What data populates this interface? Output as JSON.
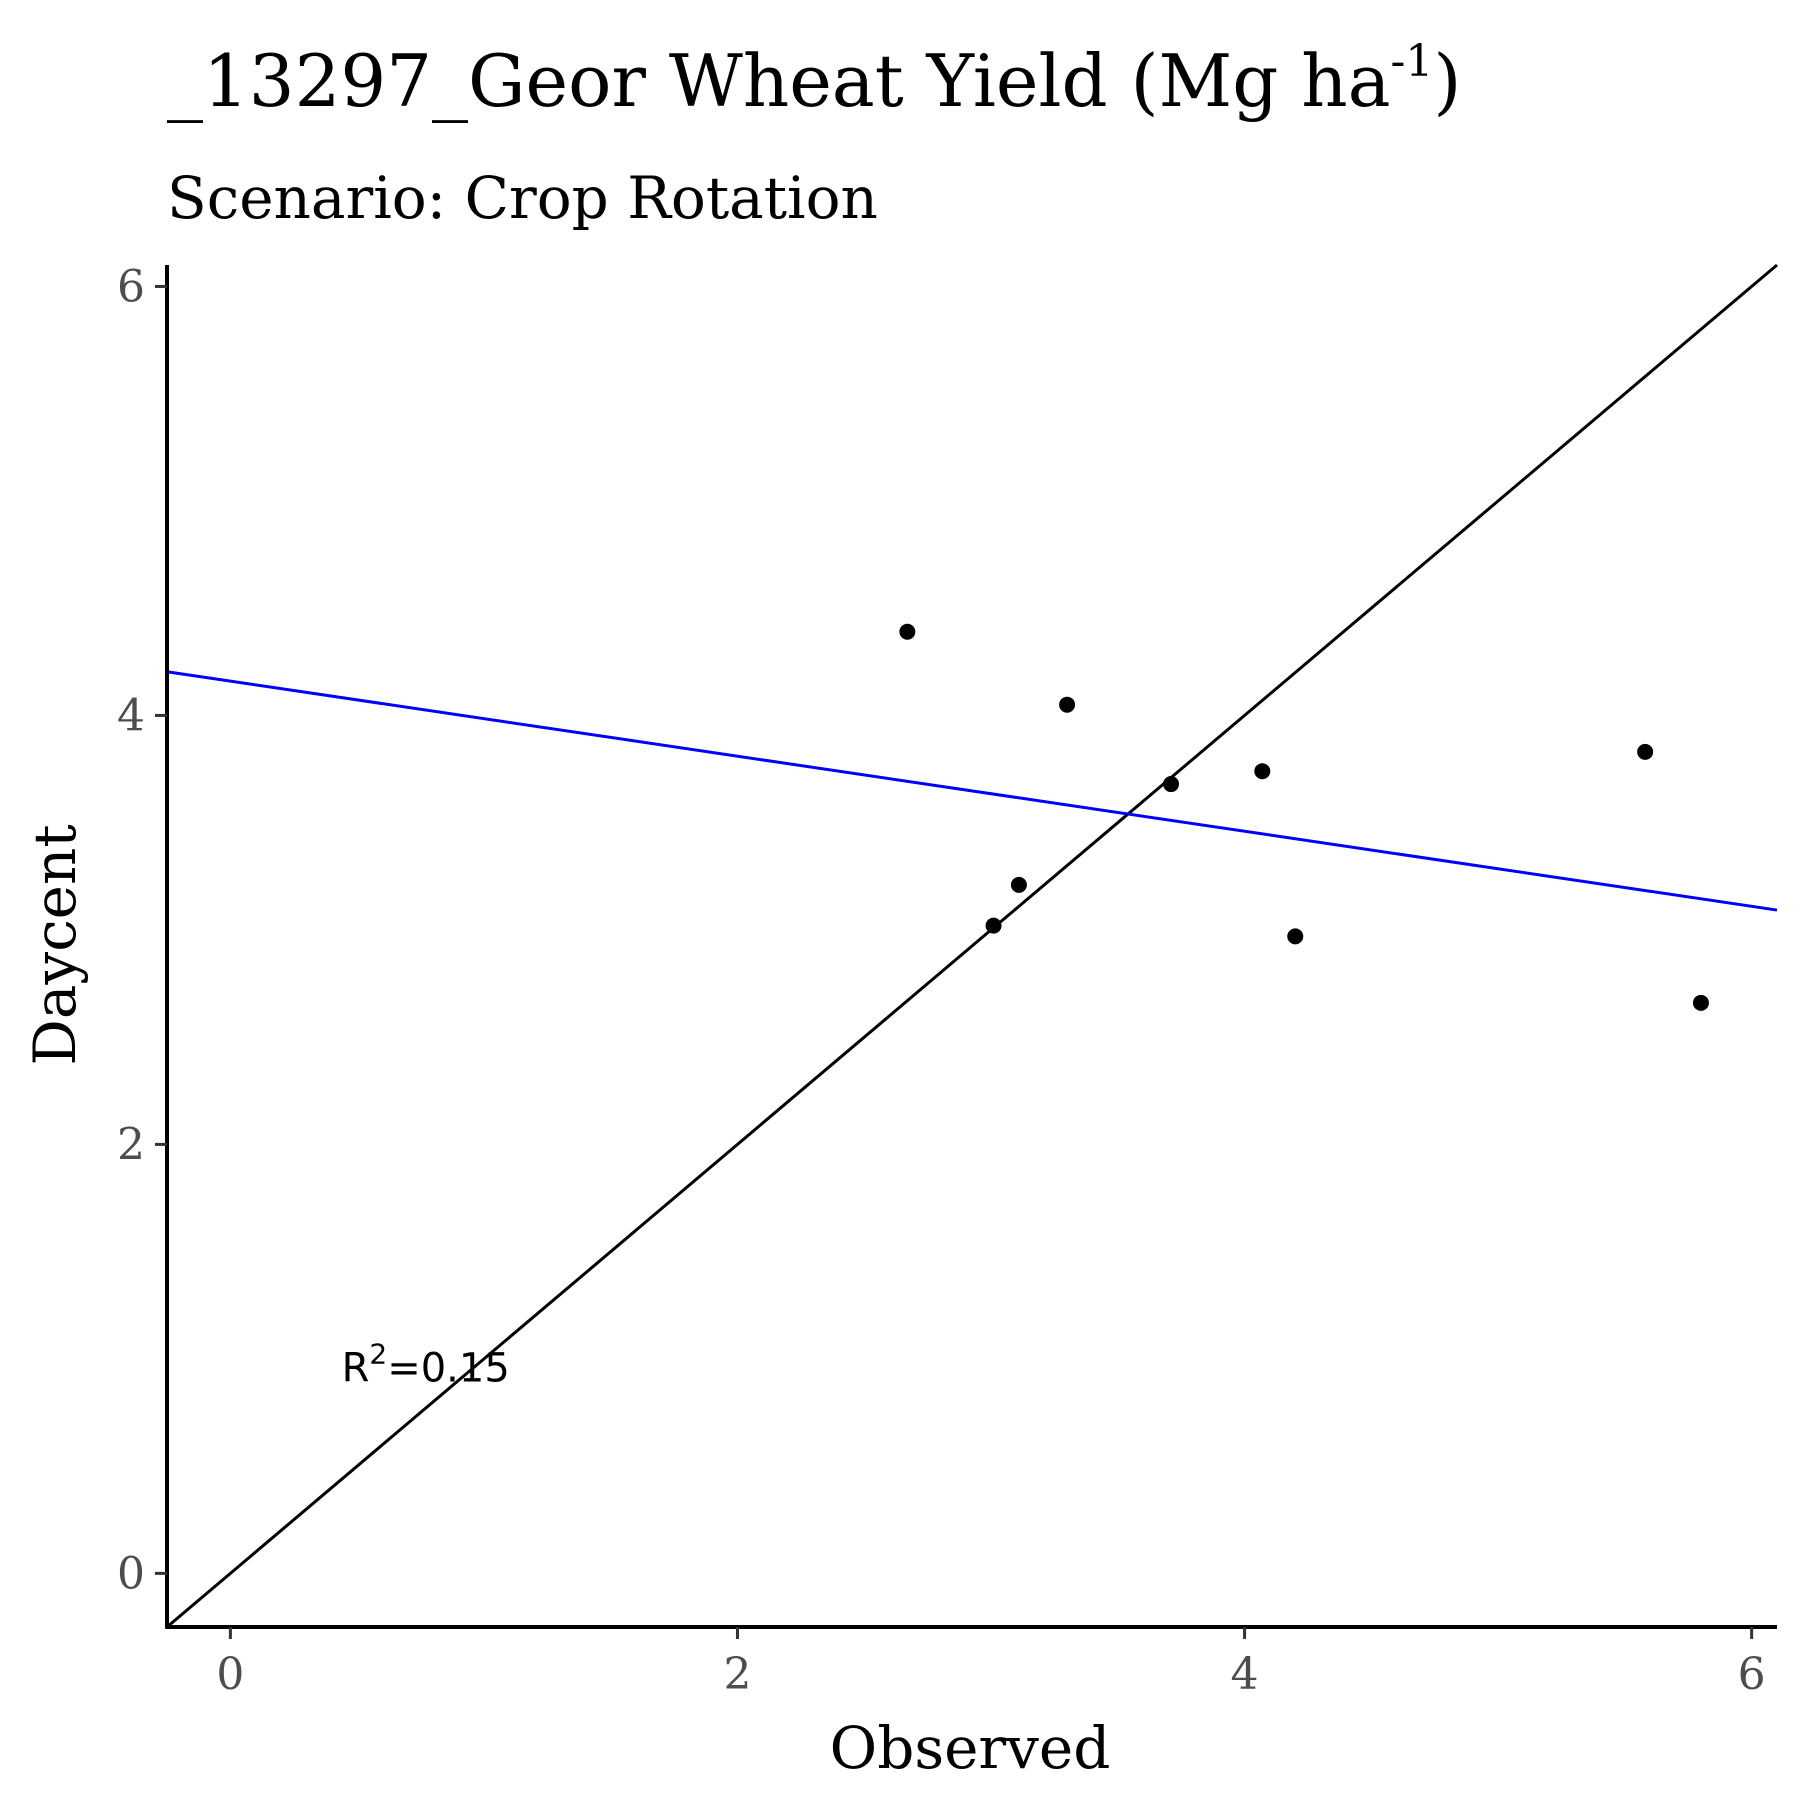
{
  "chart_data": {
    "type": "scatter",
    "title": {
      "main": "_13297_Geor Wheat Yield (Mg ha",
      "superscript": "-1",
      "close": ")"
    },
    "subtitle": "Scenario: Crop Rotation",
    "xlabel": "Observed",
    "ylabel": "Daycent",
    "xlim": [
      -0.25,
      6.1
    ],
    "ylim": [
      -0.25,
      6.1
    ],
    "x_ticks": [
      0,
      2,
      4,
      6
    ],
    "y_ticks": [
      0,
      2,
      4,
      6
    ],
    "grid": false,
    "points": [
      {
        "x": 2.67,
        "y": 4.39
      },
      {
        "x": 3.3,
        "y": 4.05
      },
      {
        "x": 3.01,
        "y": 3.02
      },
      {
        "x": 3.11,
        "y": 3.21
      },
      {
        "x": 3.71,
        "y": 3.68
      },
      {
        "x": 4.07,
        "y": 3.74
      },
      {
        "x": 4.2,
        "y": 2.97
      },
      {
        "x": 5.58,
        "y": 3.83
      },
      {
        "x": 5.8,
        "y": 2.66
      }
    ],
    "identity_line": {
      "color": "#000000",
      "from": [
        -0.25,
        -0.25
      ],
      "to": [
        6.1,
        6.1
      ]
    },
    "regression_line": {
      "color": "#0000ff",
      "intercept": 4.16,
      "slope": -0.175
    },
    "annotation": {
      "text": "R",
      "superscript": "2",
      "rest": "=0.15",
      "x": 0.62,
      "y": 0.96
    }
  }
}
